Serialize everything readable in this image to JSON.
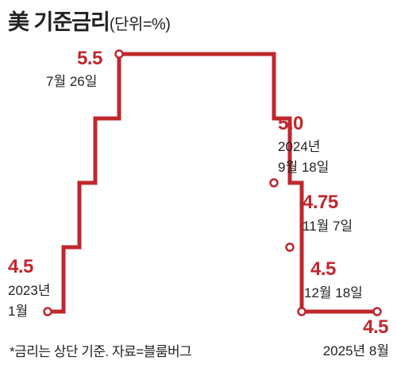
{
  "title": {
    "main": "美 기준금리",
    "unit": "(단위=%)"
  },
  "footnote": "*금리는 상단 기준. 자료=블룸버그",
  "colors": {
    "line": "#c0272d",
    "label_value": "#c0272d",
    "text": "#222222"
  },
  "chart_data": {
    "type": "line",
    "step": true,
    "ylim": [
      4.3,
      5.7
    ],
    "series": [
      {
        "values": [
          4.5,
          4.75,
          5.0,
          5.25,
          5.5,
          5.5,
          5.25,
          5.0,
          4.75,
          4.5,
          4.5
        ]
      }
    ],
    "annotations": [
      {
        "value": "4.5",
        "date_lines": [
          "2023년",
          "1월"
        ]
      },
      {
        "value": "5.5",
        "date_lines": [
          "7월 26일"
        ]
      },
      {
        "value": "5.0",
        "date_lines": [
          "2024년",
          "9월 18일"
        ]
      },
      {
        "value": "4.75",
        "date_lines": [
          "11월 7일"
        ]
      },
      {
        "value": "4.5",
        "date_lines": [
          "12월 18일"
        ]
      },
      {
        "value": "4.5",
        "date_lines": [
          "2025년 8월"
        ]
      }
    ]
  }
}
